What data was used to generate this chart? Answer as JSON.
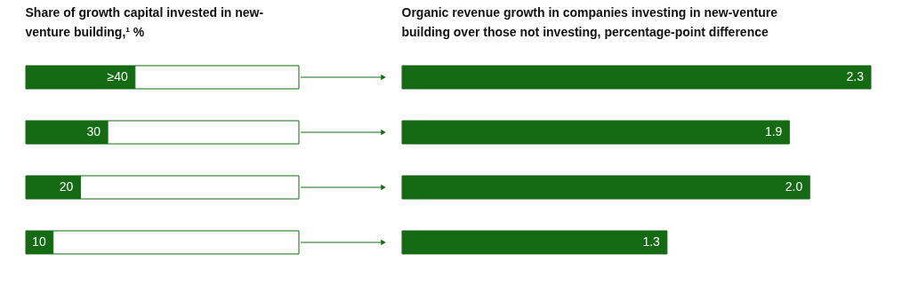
{
  "chart_data": [
    {
      "type": "bar",
      "orientation": "horizontal",
      "stacked": true,
      "title": "Share of growth capital invested in new-venture building,¹ %",
      "categories": [
        null,
        null,
        null,
        null
      ],
      "xlim": [
        0,
        100
      ],
      "tick_labels": false,
      "series": [
        {
          "color": "#146b14",
          "values": [
            40,
            30,
            20,
            10
          ],
          "value_labels": [
            "≥40",
            "30",
            "20",
            "10"
          ]
        },
        {
          "color": "#ffffff",
          "values": [
            60,
            70,
            80,
            90
          ]
        }
      ]
    },
    {
      "type": "bar",
      "orientation": "horizontal",
      "title": "Organic revenue growth in companies investing in new-venture building over those not investing, percentage-point difference",
      "categories": [
        null,
        null,
        null,
        null
      ],
      "xlim": [
        0,
        2.3
      ],
      "tick_labels": false,
      "values": [
        2.3,
        1.9,
        2.0,
        1.3
      ],
      "value_labels": [
        "2.3",
        "1.9",
        "2.0",
        "1.3"
      ],
      "color": "#146b14"
    }
  ]
}
